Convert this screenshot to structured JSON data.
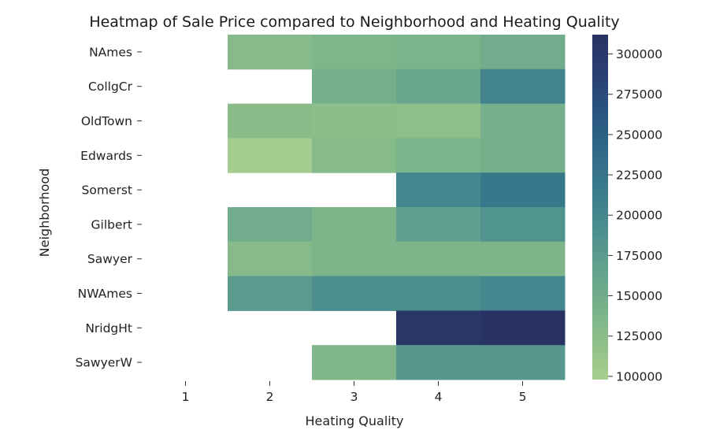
{
  "chart_data": {
    "type": "heatmap",
    "title": "Heatmap of Sale Price compared to Neighborhood and Heating Quality",
    "xlabel": "Heating Quality",
    "ylabel": "Neighborhood",
    "x_categories": [
      "1",
      "2",
      "3",
      "4",
      "5"
    ],
    "y_categories": [
      "NAmes",
      "CollgCr",
      "OldTown",
      "Edwards",
      "Somerst",
      "Gilbert",
      "Sawyer",
      "NWAmes",
      "NridgHt",
      "SawyerW"
    ],
    "values": [
      [
        null,
        128000,
        137000,
        140000,
        150000
      ],
      [
        null,
        null,
        145000,
        160000,
        205000
      ],
      [
        null,
        125000,
        122000,
        120000,
        145000
      ],
      [
        null,
        102000,
        128000,
        140000,
        145000
      ],
      [
        null,
        null,
        null,
        200000,
        220000
      ],
      [
        null,
        150000,
        138000,
        170000,
        185000
      ],
      [
        null,
        128000,
        138000,
        138000,
        138000
      ],
      [
        null,
        175000,
        190000,
        190000,
        200000
      ],
      [
        null,
        null,
        null,
        305000,
        310000
      ],
      [
        null,
        null,
        135000,
        180000,
        180000
      ]
    ],
    "colorbar": {
      "min": 98000,
      "max": 312000,
      "ticks": [
        100000,
        125000,
        150000,
        175000,
        200000,
        225000,
        250000,
        275000,
        300000
      ],
      "colors": [
        "#a8cf8f",
        "#8dbe89",
        "#75b08b",
        "#5fa08e",
        "#4a8c8f",
        "#3a7a8c",
        "#2e6887",
        "#2a5581",
        "#293f73",
        "#283263"
      ]
    },
    "grid": false,
    "legend": "none"
  }
}
